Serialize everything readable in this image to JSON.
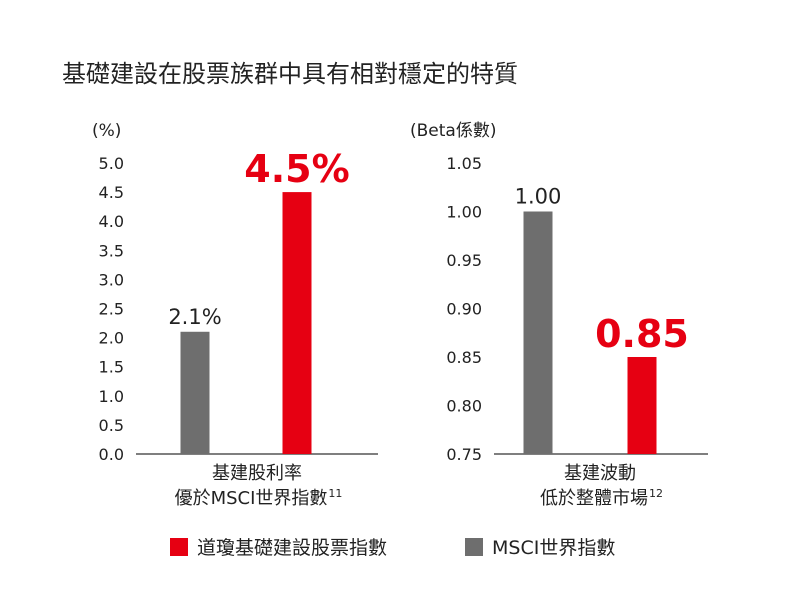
{
  "title": "基礎建設在股票族群中具有相對穩定的特質",
  "colors": {
    "red": "#e60012",
    "gray": "#6e6e6e",
    "axis": "#333333"
  },
  "legend": [
    {
      "label": "道瓊基礎建設股票指數",
      "color": "#e60012"
    },
    {
      "label": "MSCI世界指數",
      "color": "#6e6e6e"
    }
  ],
  "chart_data": [
    {
      "type": "bar",
      "unit_label": "(%)",
      "ylim": [
        0.0,
        5.0
      ],
      "yticks": [
        "0.0",
        "0.5",
        "1.0",
        "1.5",
        "2.0",
        "2.5",
        "3.0",
        "3.5",
        "4.0",
        "4.5",
        "5.0"
      ],
      "category_lines": [
        "基建股利率",
        "優於MSCI世界指數"
      ],
      "footnote": "11",
      "bars": [
        {
          "series": "MSCI世界指數",
          "value": 2.1,
          "label": "2.1%",
          "color": "#6e6e6e"
        },
        {
          "series": "道瓊基礎建設股票指數",
          "value": 4.5,
          "label": "4.5%",
          "color": "#e60012"
        }
      ]
    },
    {
      "type": "bar",
      "unit_label": "(Beta係數)",
      "ylim": [
        0.75,
        1.05
      ],
      "yticks": [
        "0.75",
        "0.80",
        "0.85",
        "0.90",
        "0.95",
        "1.00",
        "1.05"
      ],
      "category_lines": [
        "基建波動",
        "低於整體市場"
      ],
      "footnote": "12",
      "bars": [
        {
          "series": "MSCI世界指數",
          "value": 1.0,
          "label": "1.00",
          "color": "#6e6e6e"
        },
        {
          "series": "道瓊基礎建設股票指數",
          "value": 0.85,
          "label": "0.85",
          "color": "#e60012"
        }
      ]
    }
  ]
}
